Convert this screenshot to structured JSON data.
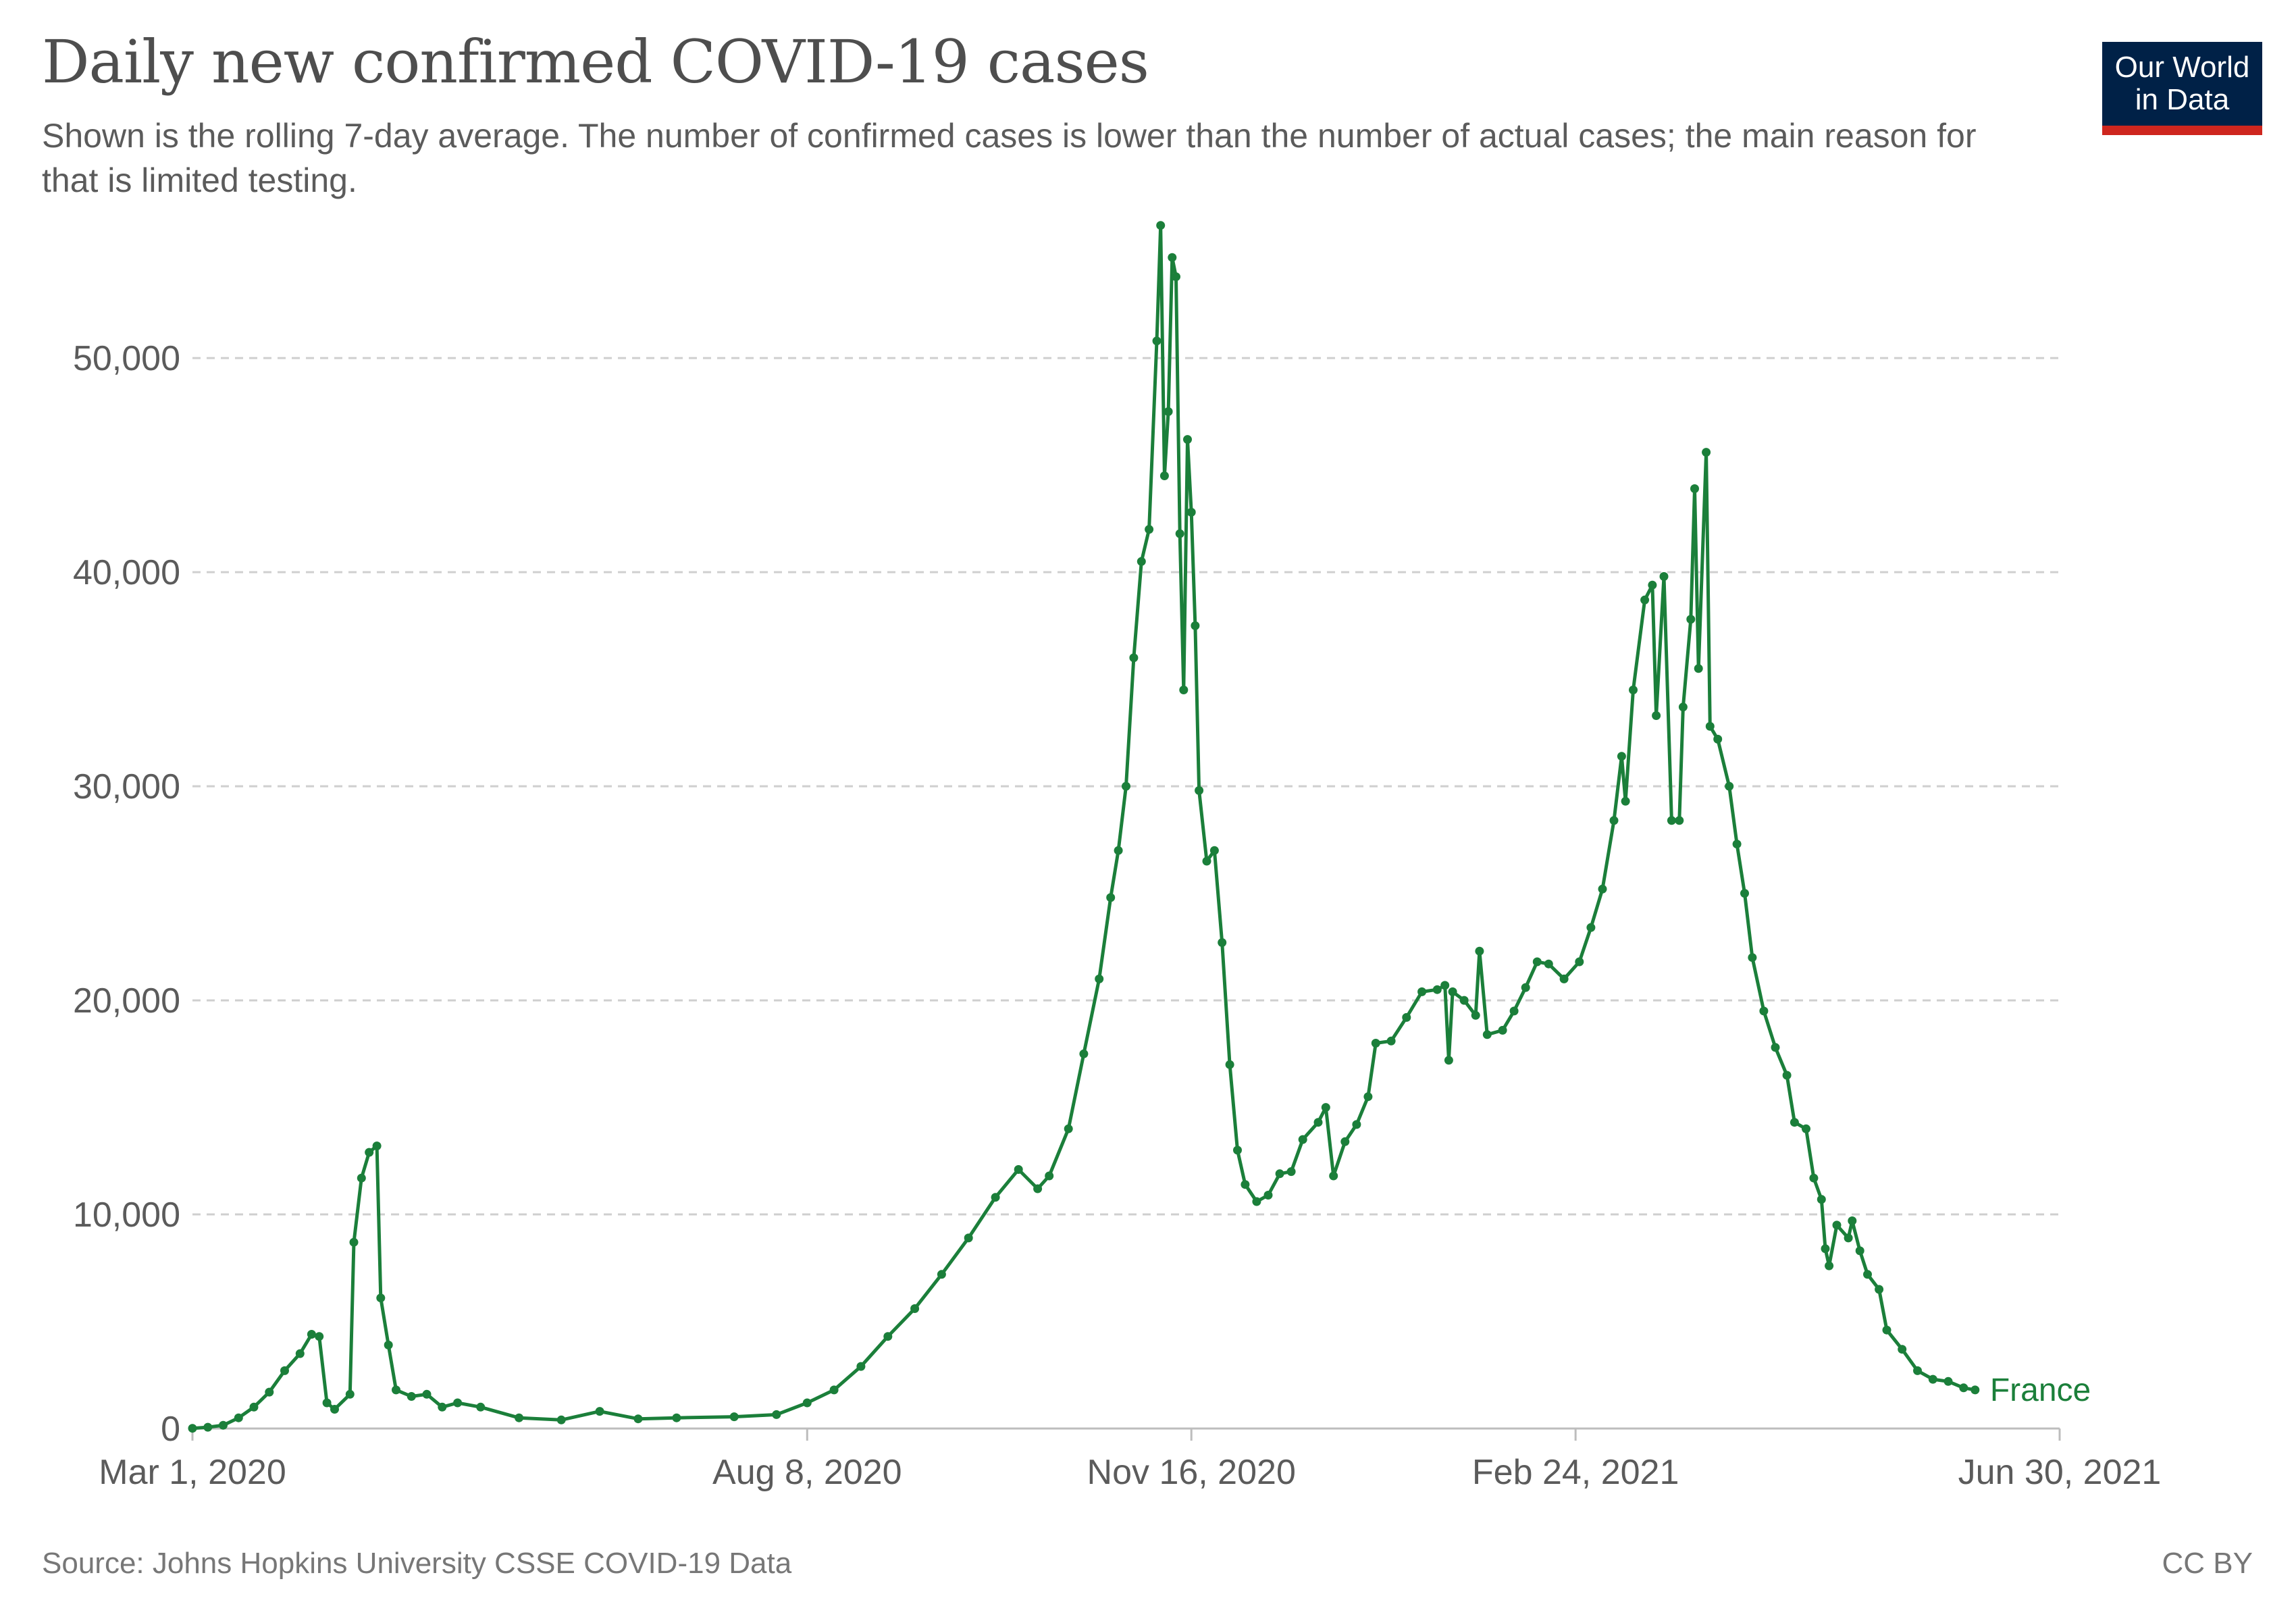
{
  "header": {
    "title": "Daily new confirmed COVID-19 cases",
    "subtitle": "Shown is the rolling 7-day average. The number of confirmed cases is lower than the number of actual cases; the main reason for that is limited testing.",
    "logo_line1": "Our World",
    "logo_line2": "in Data"
  },
  "footer": {
    "source": "Source: Johns Hopkins University CSSE COVID-19 Data",
    "license": "CC BY"
  },
  "colors": {
    "series": "#1b7f3a",
    "grid": "#cfcfcf",
    "text": "#5b5b5b",
    "logo_bg": "#002147",
    "logo_bar": "#ce261e"
  },
  "chart_data": {
    "type": "line",
    "title": "Daily new confirmed COVID-19 cases",
    "x_axis": {
      "type": "date",
      "range": [
        "2020-03-01",
        "2021-06-30"
      ],
      "ticks": [
        "Mar 1, 2020",
        "Aug 8, 2020",
        "Nov 16, 2020",
        "Feb 24, 2021",
        "Jun 30, 2021"
      ]
    },
    "y_axis": {
      "range": [
        0,
        56000
      ],
      "ticks": [
        0,
        10000,
        20000,
        30000,
        40000,
        50000
      ],
      "tick_labels": [
        "0",
        "10,000",
        "20,000",
        "30,000",
        "40,000",
        "50,000"
      ]
    },
    "grid": "horizontal dashed",
    "series": [
      {
        "name": "France",
        "color": "#1b7f3a",
        "points": [
          [
            "2020-03-01",
            10
          ],
          [
            "2020-03-05",
            60
          ],
          [
            "2020-03-09",
            150
          ],
          [
            "2020-03-13",
            500
          ],
          [
            "2020-03-17",
            1000
          ],
          [
            "2020-03-21",
            1700
          ],
          [
            "2020-03-25",
            2700
          ],
          [
            "2020-03-29",
            3500
          ],
          [
            "2020-04-01",
            4400
          ],
          [
            "2020-04-03",
            4300
          ],
          [
            "2020-04-05",
            1200
          ],
          [
            "2020-04-07",
            900
          ],
          [
            "2020-04-11",
            1600
          ],
          [
            "2020-04-12",
            8700
          ],
          [
            "2020-04-14",
            11700
          ],
          [
            "2020-04-16",
            12900
          ],
          [
            "2020-04-18",
            13200
          ],
          [
            "2020-04-19",
            6100
          ],
          [
            "2020-04-21",
            3900
          ],
          [
            "2020-04-23",
            1800
          ],
          [
            "2020-04-27",
            1500
          ],
          [
            "2020-05-01",
            1600
          ],
          [
            "2020-05-05",
            1000
          ],
          [
            "2020-05-09",
            1200
          ],
          [
            "2020-05-15",
            1000
          ],
          [
            "2020-05-25",
            500
          ],
          [
            "2020-06-05",
            400
          ],
          [
            "2020-06-15",
            800
          ],
          [
            "2020-06-25",
            450
          ],
          [
            "2020-07-05",
            500
          ],
          [
            "2020-07-20",
            550
          ],
          [
            "2020-07-31",
            650
          ],
          [
            "2020-08-08",
            1200
          ],
          [
            "2020-08-15",
            1800
          ],
          [
            "2020-08-22",
            2900
          ],
          [
            "2020-08-29",
            4300
          ],
          [
            "2020-09-05",
            5600
          ],
          [
            "2020-09-12",
            7200
          ],
          [
            "2020-09-19",
            8900
          ],
          [
            "2020-09-26",
            10800
          ],
          [
            "2020-10-02",
            12100
          ],
          [
            "2020-10-07",
            11200
          ],
          [
            "2020-10-10",
            11800
          ],
          [
            "2020-10-15",
            14000
          ],
          [
            "2020-10-19",
            17500
          ],
          [
            "2020-10-23",
            21000
          ],
          [
            "2020-10-26",
            24800
          ],
          [
            "2020-10-28",
            27000
          ],
          [
            "2020-10-30",
            30000
          ],
          [
            "2020-11-01",
            36000
          ],
          [
            "2020-11-03",
            40500
          ],
          [
            "2020-11-05",
            42000
          ],
          [
            "2020-11-07",
            50800
          ],
          [
            "2020-11-08",
            56200
          ],
          [
            "2020-11-09",
            44500
          ],
          [
            "2020-11-10",
            47500
          ],
          [
            "2020-11-11",
            54700
          ],
          [
            "2020-11-12",
            53800
          ],
          [
            "2020-11-13",
            41800
          ],
          [
            "2020-11-14",
            34500
          ],
          [
            "2020-11-15",
            46200
          ],
          [
            "2020-11-16",
            42800
          ],
          [
            "2020-11-17",
            37500
          ],
          [
            "2020-11-18",
            29800
          ],
          [
            "2020-11-20",
            26500
          ],
          [
            "2020-11-22",
            27000
          ],
          [
            "2020-11-24",
            22700
          ],
          [
            "2020-11-26",
            17000
          ],
          [
            "2020-11-28",
            13000
          ],
          [
            "2020-11-30",
            11400
          ],
          [
            "2020-12-03",
            10600
          ],
          [
            "2020-12-06",
            10900
          ],
          [
            "2020-12-09",
            11900
          ],
          [
            "2020-12-12",
            12000
          ],
          [
            "2020-12-15",
            13500
          ],
          [
            "2020-12-19",
            14300
          ],
          [
            "2020-12-21",
            15000
          ],
          [
            "2020-12-23",
            11800
          ],
          [
            "2020-12-26",
            13400
          ],
          [
            "2020-12-29",
            14200
          ],
          [
            "2021-01-01",
            15500
          ],
          [
            "2021-01-03",
            18000
          ],
          [
            "2021-01-07",
            18100
          ],
          [
            "2021-01-11",
            19200
          ],
          [
            "2021-01-15",
            20400
          ],
          [
            "2021-01-19",
            20500
          ],
          [
            "2021-01-21",
            20700
          ],
          [
            "2021-01-22",
            17200
          ],
          [
            "2021-01-23",
            20400
          ],
          [
            "2021-01-26",
            20000
          ],
          [
            "2021-01-29",
            19300
          ],
          [
            "2021-01-30",
            22300
          ],
          [
            "2021-02-01",
            18400
          ],
          [
            "2021-02-05",
            18600
          ],
          [
            "2021-02-08",
            19500
          ],
          [
            "2021-02-11",
            20600
          ],
          [
            "2021-02-14",
            21800
          ],
          [
            "2021-02-17",
            21700
          ],
          [
            "2021-02-21",
            21000
          ],
          [
            "2021-02-25",
            21800
          ],
          [
            "2021-02-28",
            23400
          ],
          [
            "2021-03-03",
            25200
          ],
          [
            "2021-03-06",
            28400
          ],
          [
            "2021-03-08",
            31400
          ],
          [
            "2021-03-09",
            29300
          ],
          [
            "2021-03-11",
            34500
          ],
          [
            "2021-03-14",
            38700
          ],
          [
            "2021-03-16",
            39400
          ],
          [
            "2021-03-17",
            33300
          ],
          [
            "2021-03-19",
            39800
          ],
          [
            "2021-03-21",
            28400
          ],
          [
            "2021-03-23",
            28400
          ],
          [
            "2021-03-24",
            33700
          ],
          [
            "2021-03-26",
            37800
          ],
          [
            "2021-03-27",
            43900
          ],
          [
            "2021-03-28",
            35500
          ],
          [
            "2021-03-30",
            45600
          ],
          [
            "2021-03-31",
            32800
          ],
          [
            "2021-04-02",
            32200
          ],
          [
            "2021-04-05",
            30000
          ],
          [
            "2021-04-07",
            27300
          ],
          [
            "2021-04-09",
            25000
          ],
          [
            "2021-04-11",
            22000
          ],
          [
            "2021-04-14",
            19500
          ],
          [
            "2021-04-17",
            17800
          ],
          [
            "2021-04-20",
            16500
          ],
          [
            "2021-04-22",
            14300
          ],
          [
            "2021-04-25",
            14000
          ],
          [
            "2021-04-27",
            11700
          ],
          [
            "2021-04-29",
            10700
          ],
          [
            "2021-04-30",
            8400
          ],
          [
            "2021-05-01",
            7600
          ],
          [
            "2021-05-03",
            9500
          ],
          [
            "2021-05-06",
            8900
          ],
          [
            "2021-05-07",
            9700
          ],
          [
            "2021-05-09",
            8300
          ],
          [
            "2021-05-11",
            7200
          ],
          [
            "2021-05-14",
            6500
          ],
          [
            "2021-05-16",
            4600
          ],
          [
            "2021-05-20",
            3700
          ],
          [
            "2021-05-24",
            2700
          ],
          [
            "2021-05-28",
            2300
          ],
          [
            "2021-06-01",
            2200
          ],
          [
            "2021-06-05",
            1900
          ],
          [
            "2021-06-08",
            1800
          ]
        ]
      }
    ]
  }
}
